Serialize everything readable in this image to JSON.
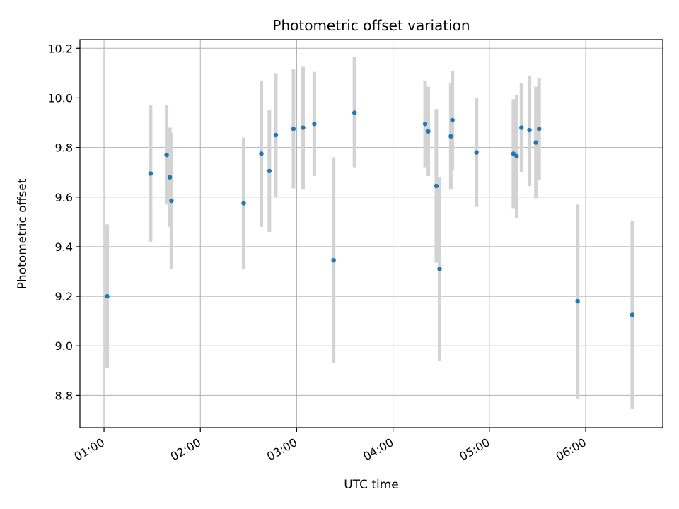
{
  "chart_data": {
    "type": "scatter",
    "title": "Photometric offset variation",
    "xlabel": "UTC time",
    "ylabel": "Photometric offset",
    "x_unit": "UTC time (HH:MM)",
    "x_ticks": [
      "01:00",
      "02:00",
      "03:00",
      "04:00",
      "05:00",
      "06:00"
    ],
    "y_ticks": [
      "8.8",
      "9.0",
      "9.2",
      "9.4",
      "9.6",
      "9.8",
      "10.0",
      "10.2"
    ],
    "xlim": [
      "00:45",
      "06:48"
    ],
    "ylim": [
      8.67,
      10.235
    ],
    "grid": true,
    "legend": "none",
    "colors": {
      "point": "#1f77b4",
      "errorbar": "#d3d3d3",
      "grid": "#b0b0b0",
      "axes": "#000000"
    },
    "points": [
      {
        "x": "01:02",
        "y": 9.2,
        "low": 8.91,
        "high": 9.49
      },
      {
        "x": "01:29",
        "y": 9.695,
        "low": 9.42,
        "high": 9.97
      },
      {
        "x": "01:39",
        "y": 9.77,
        "low": 9.57,
        "high": 9.97
      },
      {
        "x": "01:41",
        "y": 9.68,
        "low": 9.48,
        "high": 9.88
      },
      {
        "x": "01:42",
        "y": 9.585,
        "low": 9.31,
        "high": 9.86
      },
      {
        "x": "02:27",
        "y": 9.575,
        "low": 9.31,
        "high": 9.84
      },
      {
        "x": "02:38",
        "y": 9.775,
        "low": 9.48,
        "high": 10.07
      },
      {
        "x": "02:43",
        "y": 9.705,
        "low": 9.46,
        "high": 9.95
      },
      {
        "x": "02:47",
        "y": 9.85,
        "low": 9.6,
        "high": 10.1
      },
      {
        "x": "02:58",
        "y": 9.875,
        "low": 9.635,
        "high": 10.115
      },
      {
        "x": "03:04",
        "y": 9.88,
        "low": 9.63,
        "high": 10.125
      },
      {
        "x": "03:11",
        "y": 9.895,
        "low": 9.685,
        "high": 10.105
      },
      {
        "x": "03:23",
        "y": 9.345,
        "low": 8.93,
        "high": 9.76
      },
      {
        "x": "03:36",
        "y": 9.94,
        "low": 9.72,
        "high": 10.165
      },
      {
        "x": "04:20",
        "y": 9.895,
        "low": 9.72,
        "high": 10.07
      },
      {
        "x": "04:22",
        "y": 9.865,
        "low": 9.685,
        "high": 10.045
      },
      {
        "x": "04:27",
        "y": 9.645,
        "low": 9.335,
        "high": 9.955
      },
      {
        "x": "04:29",
        "y": 9.31,
        "low": 8.94,
        "high": 9.68
      },
      {
        "x": "04:36",
        "y": 9.845,
        "low": 9.63,
        "high": 10.06
      },
      {
        "x": "04:37",
        "y": 9.91,
        "low": 9.71,
        "high": 10.11
      },
      {
        "x": "04:52",
        "y": 9.78,
        "low": 9.56,
        "high": 10.0
      },
      {
        "x": "05:15",
        "y": 9.775,
        "low": 9.555,
        "high": 9.995
      },
      {
        "x": "05:17",
        "y": 9.765,
        "low": 9.515,
        "high": 10.01
      },
      {
        "x": "05:20",
        "y": 9.88,
        "low": 9.7,
        "high": 10.06
      },
      {
        "x": "05:25",
        "y": 9.87,
        "low": 9.645,
        "high": 10.09
      },
      {
        "x": "05:29",
        "y": 9.82,
        "low": 9.595,
        "high": 10.045
      },
      {
        "x": "05:31",
        "y": 9.875,
        "low": 9.67,
        "high": 10.08
      },
      {
        "x": "05:55",
        "y": 9.18,
        "low": 8.785,
        "high": 9.57
      },
      {
        "x": "06:29",
        "y": 9.125,
        "low": 8.745,
        "high": 9.505
      }
    ]
  }
}
